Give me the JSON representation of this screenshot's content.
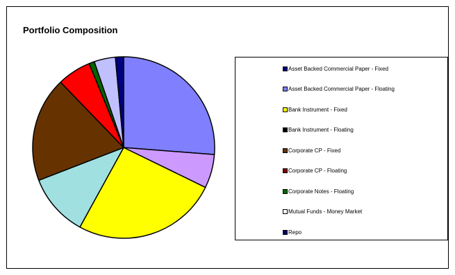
{
  "chart_data": {
    "type": "pie",
    "title": "Portfolio Composition",
    "legend_position": "right",
    "categories": [
      "Asset Backed Commercial Paper - Fixed",
      "Asset Backed Commercial Paper - Floating",
      "Bank Instrument - Fixed",
      "Bank Instrument - Floating",
      "Corporate CP - Fixed",
      "Corporate CP - Floating",
      "Corporate Notes - Floating",
      "Mutual Funds - Money Market",
      "Repo"
    ],
    "legend_colors": [
      "#000080",
      "#8080FF",
      "#FFFF00",
      "#000000",
      "#663300",
      "#800000",
      "#006600",
      "#FFFFFF",
      "#000066"
    ],
    "slices": [
      {
        "label": "",
        "value": 27.1,
        "color": "#8080FF"
      },
      {
        "label": "",
        "value": 6.2,
        "color": "#CC99FF"
      },
      {
        "label": "",
        "value": 26.6,
        "color": "#FFFF00"
      },
      {
        "label": "",
        "value": 11.5,
        "color": "#A0E0E0"
      },
      {
        "label": "",
        "value": 19.3,
        "color": "#663300"
      },
      {
        "label": "",
        "value": 6.2,
        "color": "#FF0000"
      },
      {
        "label": "",
        "value": 1.0,
        "color": "#006600"
      },
      {
        "label": "",
        "value": 3.9,
        "color": "#C0C0FF"
      },
      {
        "label": "",
        "value": 1.5,
        "color": "#000080"
      }
    ]
  }
}
